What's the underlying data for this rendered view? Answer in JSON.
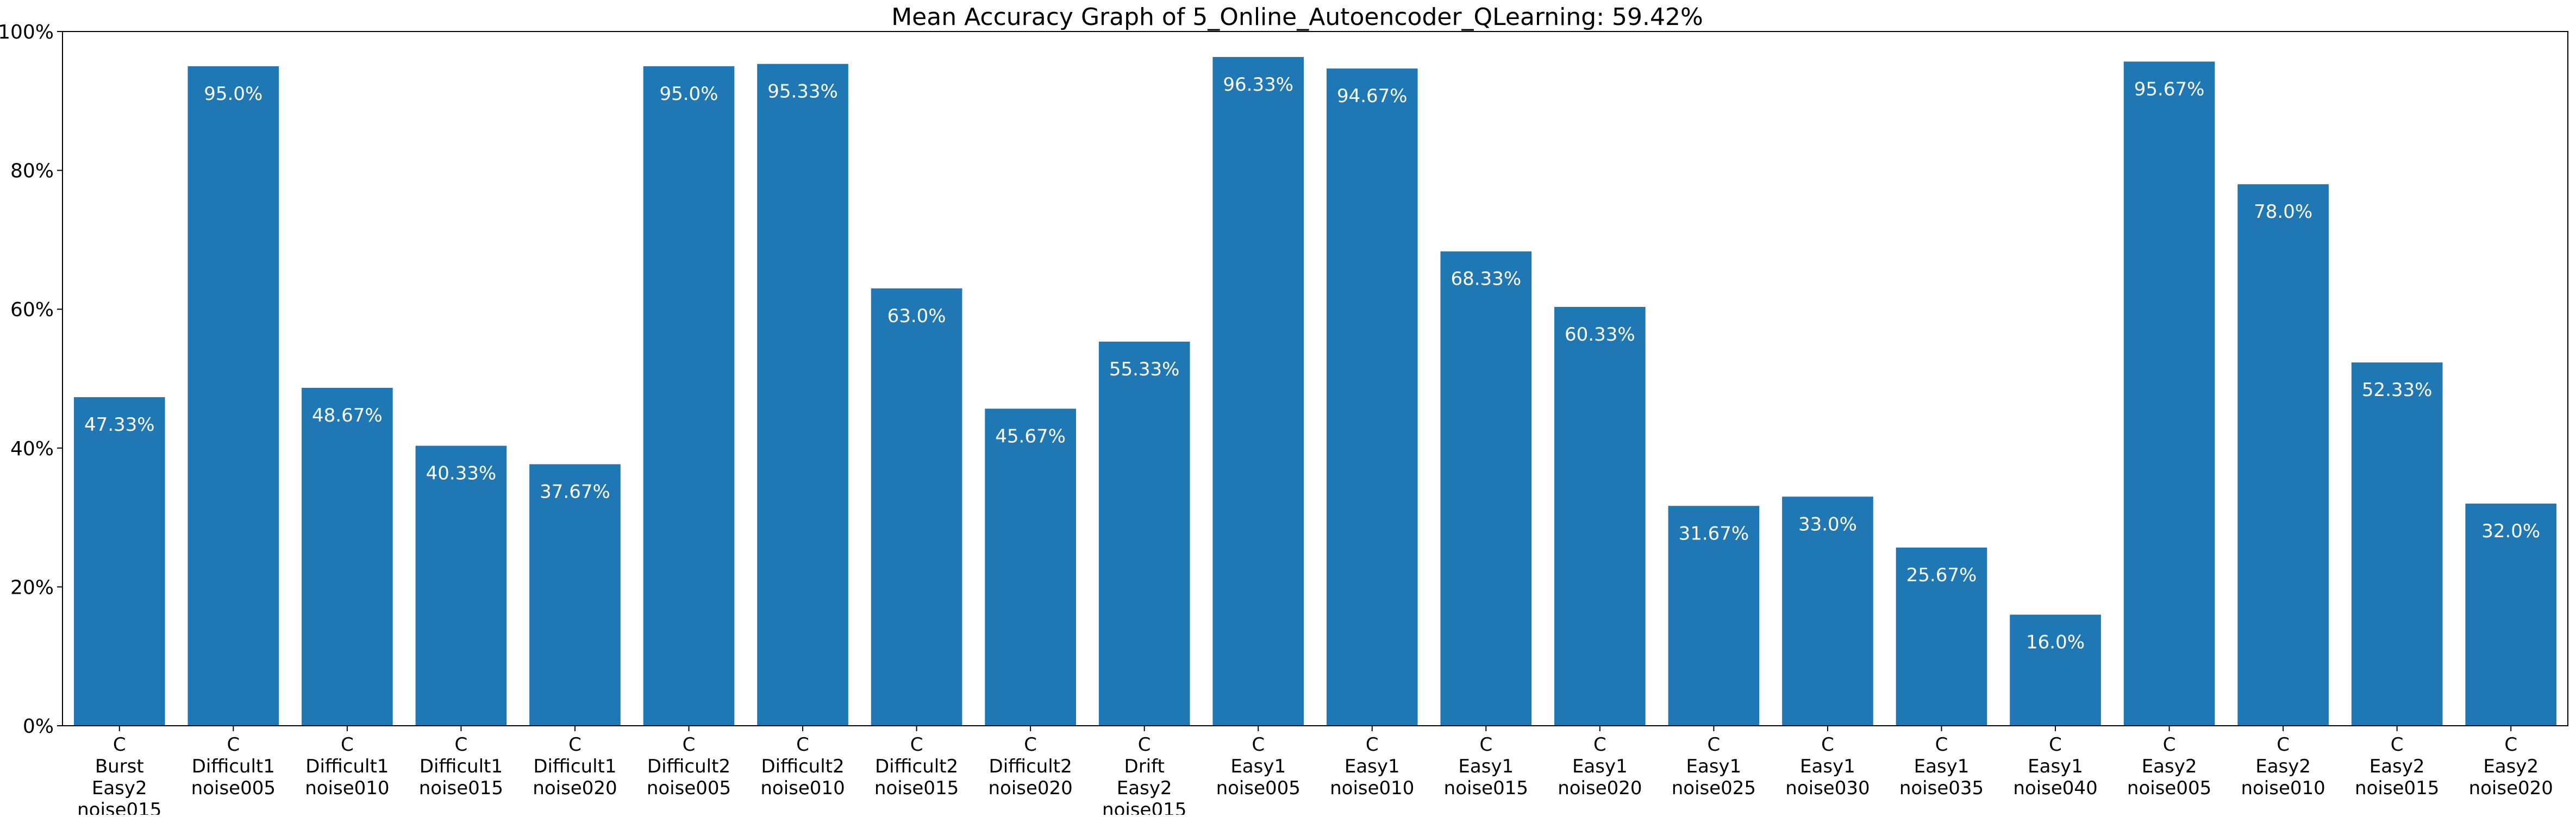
{
  "chart_data": {
    "type": "bar",
    "title": "Mean Accuracy Graph of 5_Online_Autoencoder_QLearning: 59.42%",
    "xlabel": "",
    "ylabel": "",
    "ylim": [
      0,
      100
    ],
    "y_ticks": [
      {
        "value": 0,
        "label": "0%"
      },
      {
        "value": 20,
        "label": "20%"
      },
      {
        "value": 40,
        "label": "40%"
      },
      {
        "value": 60,
        "label": "60%"
      },
      {
        "value": 80,
        "label": "80%"
      },
      {
        "value": 100,
        "label": "100%"
      }
    ],
    "categories": [
      [
        "C",
        "Burst",
        "Easy2",
        "noise015"
      ],
      [
        "C",
        "Difficult1",
        "noise005"
      ],
      [
        "C",
        "Difficult1",
        "noise010"
      ],
      [
        "C",
        "Difficult1",
        "noise015"
      ],
      [
        "C",
        "Difficult1",
        "noise020"
      ],
      [
        "C",
        "Difficult2",
        "noise005"
      ],
      [
        "C",
        "Difficult2",
        "noise010"
      ],
      [
        "C",
        "Difficult2",
        "noise015"
      ],
      [
        "C",
        "Difficult2",
        "noise020"
      ],
      [
        "C",
        "Drift",
        "Easy2",
        "noise015"
      ],
      [
        "C",
        "Easy1",
        "noise005"
      ],
      [
        "C",
        "Easy1",
        "noise010"
      ],
      [
        "C",
        "Easy1",
        "noise015"
      ],
      [
        "C",
        "Easy1",
        "noise020"
      ],
      [
        "C",
        "Easy1",
        "noise025"
      ],
      [
        "C",
        "Easy1",
        "noise030"
      ],
      [
        "C",
        "Easy1",
        "noise035"
      ],
      [
        "C",
        "Easy1",
        "noise040"
      ],
      [
        "C",
        "Easy2",
        "noise005"
      ],
      [
        "C",
        "Easy2",
        "noise010"
      ],
      [
        "C",
        "Easy2",
        "noise015"
      ],
      [
        "C",
        "Easy2",
        "noise020"
      ]
    ],
    "values": [
      47.33,
      95.0,
      48.67,
      40.33,
      37.67,
      95.0,
      95.33,
      63.0,
      45.67,
      55.33,
      96.33,
      94.67,
      68.33,
      60.33,
      31.67,
      33.0,
      25.67,
      16.0,
      95.67,
      78.0,
      52.33,
      32.0
    ],
    "value_labels": [
      "47.33%",
      "95.0%",
      "48.67%",
      "40.33%",
      "37.67%",
      "95.0%",
      "95.33%",
      "63.0%",
      "45.67%",
      "55.33%",
      "96.33%",
      "94.67%",
      "68.33%",
      "60.33%",
      "31.67%",
      "33.0%",
      "25.67%",
      "16.0%",
      "95.67%",
      "78.0%",
      "52.33%",
      "32.0%"
    ],
    "grid": false,
    "legend": "none",
    "colors": {
      "bar": "#1f77b4",
      "bar_label": "#ffffff",
      "axis": "#000000",
      "text": "#000000"
    }
  }
}
